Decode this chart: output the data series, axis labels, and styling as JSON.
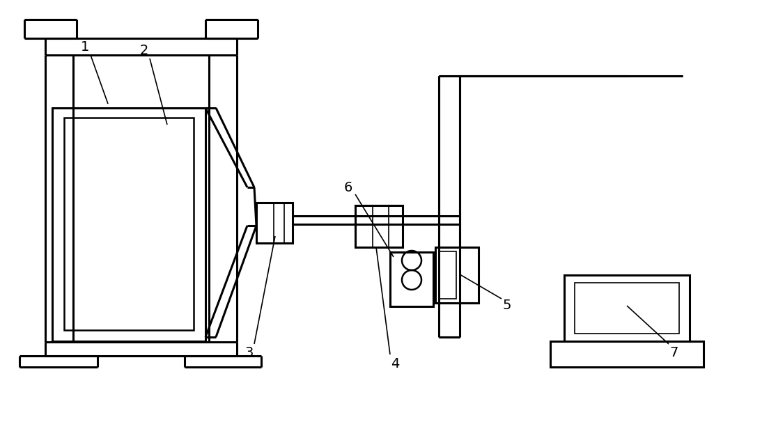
{
  "bg_color": "#ffffff",
  "lc": "#000000",
  "lw": 1.8,
  "lw_thin": 1.2,
  "fig_w": 11.04,
  "fig_h": 6.39,
  "dpi": 100
}
